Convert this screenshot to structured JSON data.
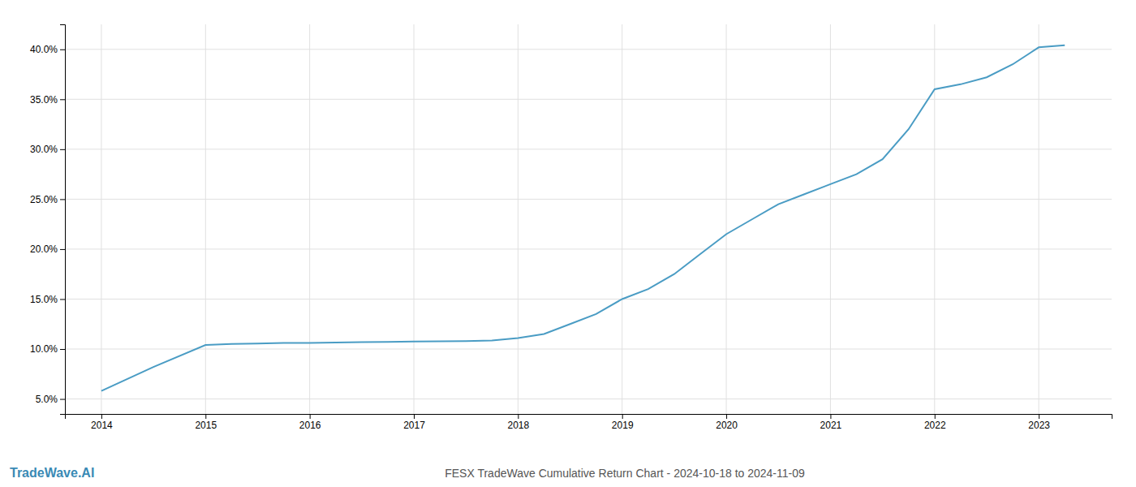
{
  "chart_data": {
    "type": "line",
    "title": "FESX TradeWave Cumulative Return Chart - 2024-10-18 to 2024-11-09",
    "annotations": [
      "TradeWave.AI"
    ],
    "x": [
      2014.0,
      2014.5,
      2015.0,
      2015.25,
      2015.5,
      2015.75,
      2016.0,
      2016.25,
      2016.5,
      2016.75,
      2017.0,
      2017.25,
      2017.5,
      2017.75,
      2018.0,
      2018.25,
      2018.5,
      2018.75,
      2019.0,
      2019.25,
      2019.5,
      2019.75,
      2020.0,
      2020.25,
      2020.5,
      2020.75,
      2021.0,
      2021.25,
      2021.5,
      2021.75,
      2022.0,
      2022.25,
      2022.5,
      2022.75,
      2023.0,
      2023.25
    ],
    "values": [
      5.8,
      8.2,
      10.4,
      10.5,
      10.55,
      10.6,
      10.6,
      10.65,
      10.7,
      10.72,
      10.75,
      10.78,
      10.8,
      10.85,
      11.1,
      11.5,
      12.5,
      13.5,
      15.0,
      16.0,
      17.5,
      19.5,
      21.5,
      23.0,
      24.5,
      25.5,
      26.5,
      27.5,
      29.0,
      32.0,
      36.0,
      36.5,
      37.2,
      38.5,
      40.2,
      40.4
    ],
    "color": "#4a9cc4",
    "xlim": [
      2013.65,
      2023.7
    ],
    "ylim": [
      3.5,
      42.5
    ],
    "xticks": [
      2014,
      2015,
      2016,
      2017,
      2018,
      2019,
      2020,
      2021,
      2022,
      2023
    ],
    "yticks": [
      {
        "value": 5.0,
        "label": "5.0%"
      },
      {
        "value": 10.0,
        "label": "10.0%"
      },
      {
        "value": 15.0,
        "label": "15.0%"
      },
      {
        "value": 20.0,
        "label": "20.0%"
      },
      {
        "value": 25.0,
        "label": "25.0%"
      },
      {
        "value": 30.0,
        "label": "30.0%"
      },
      {
        "value": 35.0,
        "label": "35.0%"
      },
      {
        "value": 40.0,
        "label": "40.0%"
      }
    ],
    "grid": true
  }
}
